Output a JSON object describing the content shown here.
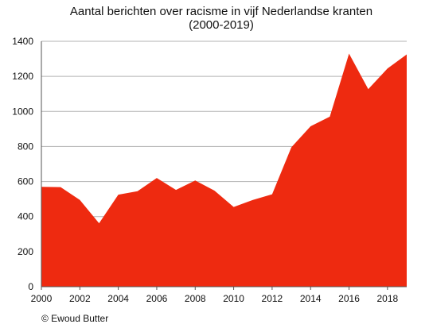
{
  "chart_data": {
    "type": "area",
    "title_lines": [
      "Aantal berichten over racisme in vijf Nederlandse kranten",
      "(2000-2019)"
    ],
    "x": [
      2000,
      2001,
      2002,
      2003,
      2004,
      2005,
      2006,
      2007,
      2008,
      2009,
      2010,
      2011,
      2012,
      2013,
      2014,
      2015,
      2016,
      2017,
      2018,
      2019
    ],
    "series": [
      {
        "values": [
          570,
          568,
          495,
          362,
          525,
          545,
          620,
          552,
          606,
          548,
          455,
          495,
          527,
          795,
          915,
          970,
          1330,
          1127,
          1245,
          1325
        ]
      }
    ],
    "xlim": [
      2000,
      2019
    ],
    "ylim": [
      0,
      1400
    ],
    "x_ticks": [
      2000,
      2002,
      2004,
      2006,
      2008,
      2010,
      2012,
      2014,
      2016,
      2018
    ],
    "y_ticks": [
      0,
      200,
      400,
      600,
      800,
      1000,
      1200,
      1400
    ],
    "grid": "horizontal",
    "legend": "none",
    "colors": {
      "area": "#EE2A10",
      "grid": "#b3b3b3",
      "axis": "#555555"
    },
    "credit": "© Ewoud Butter"
  }
}
